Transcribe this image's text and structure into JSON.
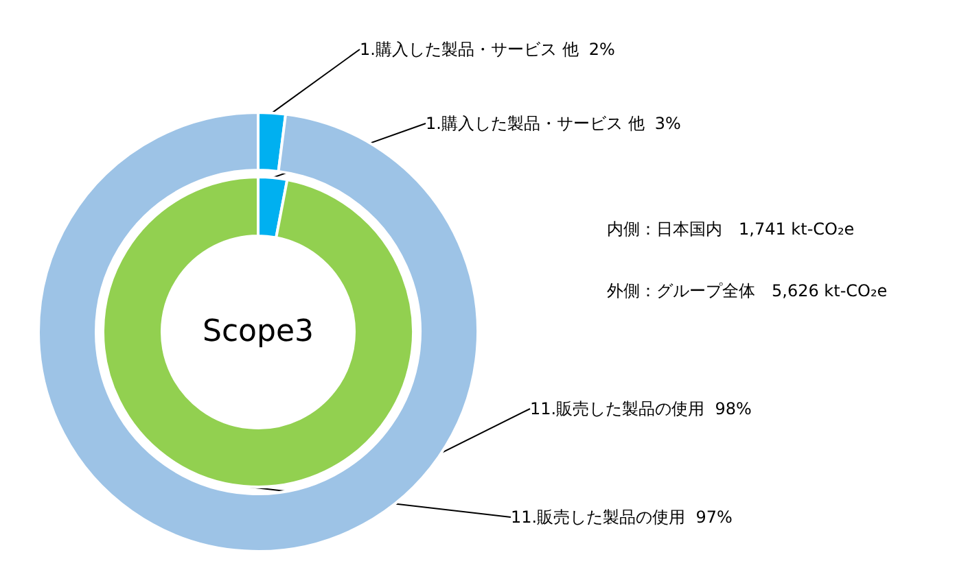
{
  "chart_data": {
    "type": "donut",
    "categories": [
      "1.購入した製品・サービス 他",
      "11.販売した製品の使用"
    ],
    "series": [
      {
        "colors": [
          "#00b0f0",
          "#92d050"
        ],
        "values": [
          3,
          97
        ],
        "value_labels": [
          "3%",
          "97%"
        ]
      },
      {
        "colors": [
          "#00b0f0",
          "#9dc3e6"
        ],
        "values": [
          2,
          98
        ],
        "value_labels": [
          "2%",
          "98%"
        ]
      }
    ],
    "annotations": [
      "Scope3",
      "内側：日本国内　1,741 kt-CO₂e",
      "外側：グループ全体　5,626 kt-CO₂e"
    ],
    "legend": false
  }
}
